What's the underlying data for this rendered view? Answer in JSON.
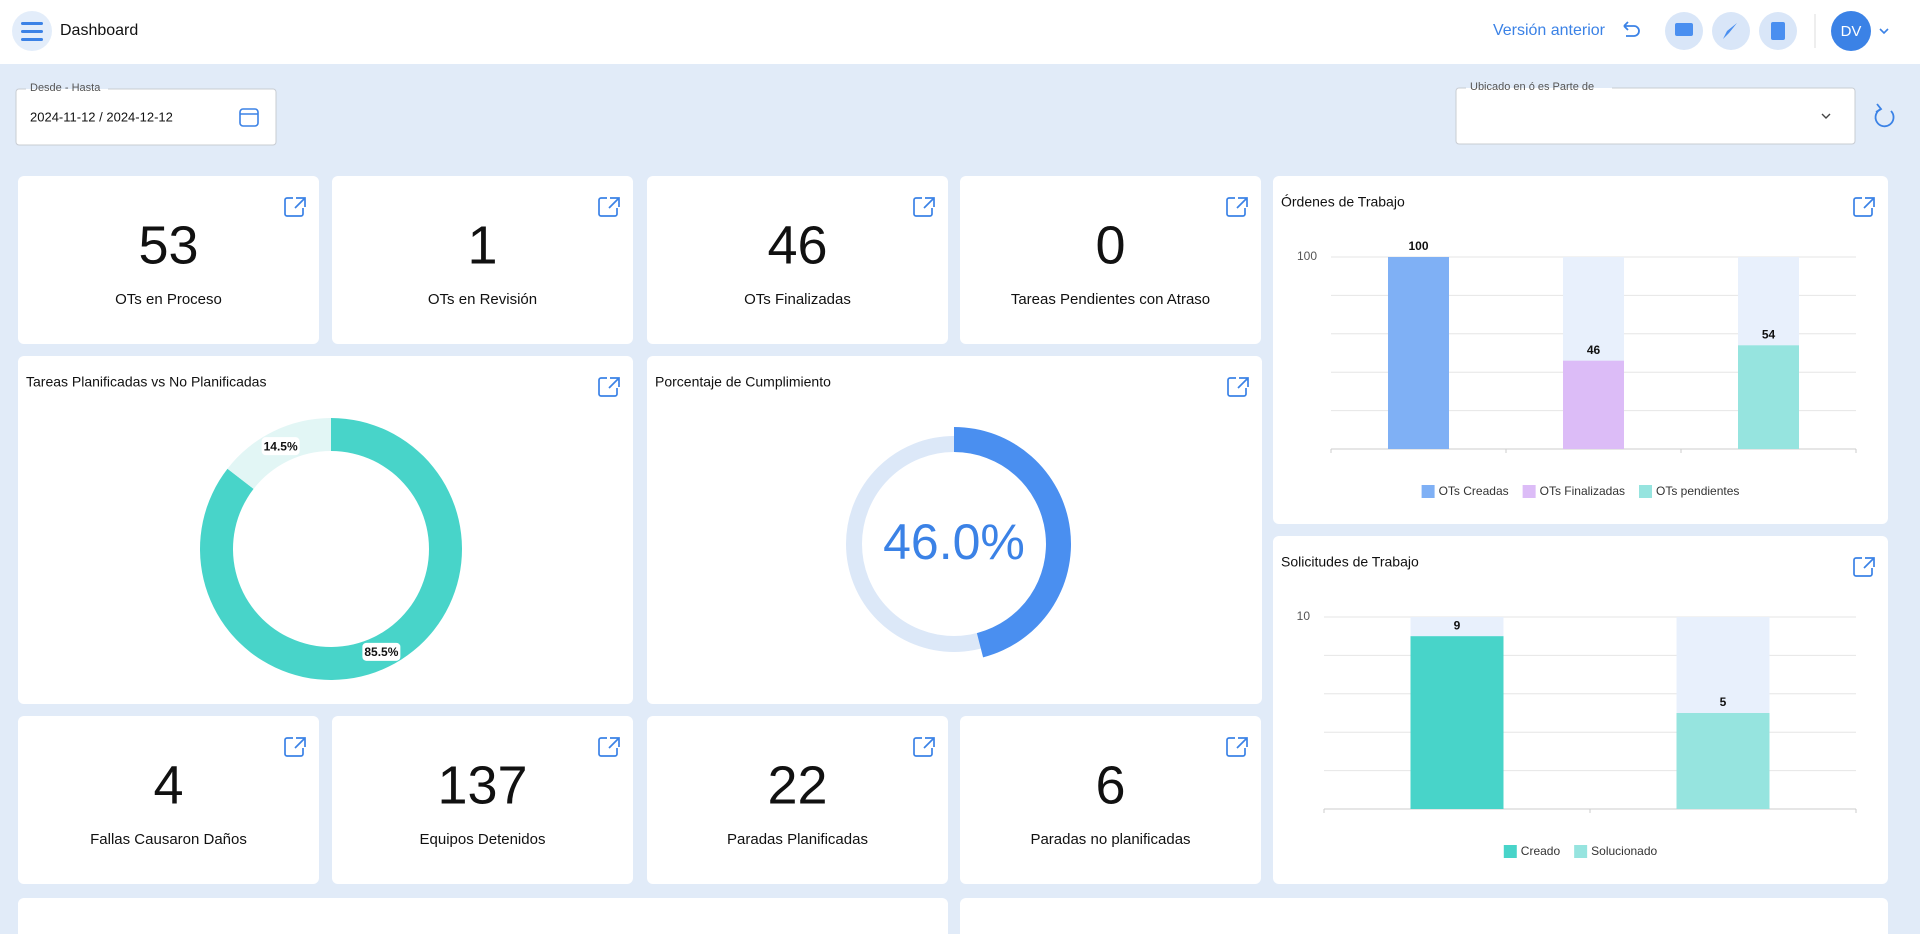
{
  "header": {
    "title": "Dashboard",
    "previous_version": "Versión anterior",
    "avatar": "DV"
  },
  "filters": {
    "date_label": "Desde - Hasta",
    "date_value": "2024-11-12 / 2024-12-12",
    "location_label": "Ubicado en ó es Parte de"
  },
  "kpis": [
    {
      "value": 53,
      "label": "OTs en Proceso"
    },
    {
      "value": 1,
      "label": "OTs en Revisión"
    },
    {
      "value": 46,
      "label": "OTs Finalizadas"
    },
    {
      "value": 0,
      "label": "Tareas Pendientes con Atraso"
    },
    {
      "value": 4,
      "label": "Fallas Causaron Daños"
    },
    {
      "value": 137,
      "label": "Equipos Detenidos"
    },
    {
      "value": 22,
      "label": "Paradas Planificadas"
    },
    {
      "value": 6,
      "label": "Paradas no planificadas"
    }
  ],
  "chart_data": [
    {
      "type": "pie",
      "title": "Tareas Planificadas vs No Planificadas",
      "values": [
        85.5,
        14.5
      ],
      "value_labels": [
        "85.5%",
        "14.5%"
      ],
      "colors": [
        "#48d4c9",
        "#e2f6f5"
      ]
    },
    {
      "type": "gauge",
      "title": "Porcentaje de Cumplimiento",
      "value": 46,
      "value_label": "46.0%",
      "ylim": [
        0,
        100
      ],
      "color": "#4a8ff0",
      "track_color": "#dce8f8"
    },
    {
      "type": "bar",
      "title": "Órdenes de Trabajo",
      "categories": [
        "OTs Creadas",
        "OTs Finalizadas",
        "OTs pendientes"
      ],
      "values": [
        100,
        46,
        54
      ],
      "colors": [
        "#7fb0f5",
        "#dcbcf7",
        "#96e4df"
      ],
      "ylim": [
        0,
        100
      ],
      "yticks": [
        100
      ],
      "grid": true,
      "legend": "bottom"
    },
    {
      "type": "bar",
      "title": "Solicitudes de Trabajo",
      "categories": [
        "Creado",
        "Solucionado"
      ],
      "values": [
        9,
        5
      ],
      "colors": [
        "#48d4c9",
        "#96e4df"
      ],
      "ylim": [
        0,
        10
      ],
      "yticks": [
        10
      ],
      "grid": true,
      "legend": "bottom"
    }
  ]
}
